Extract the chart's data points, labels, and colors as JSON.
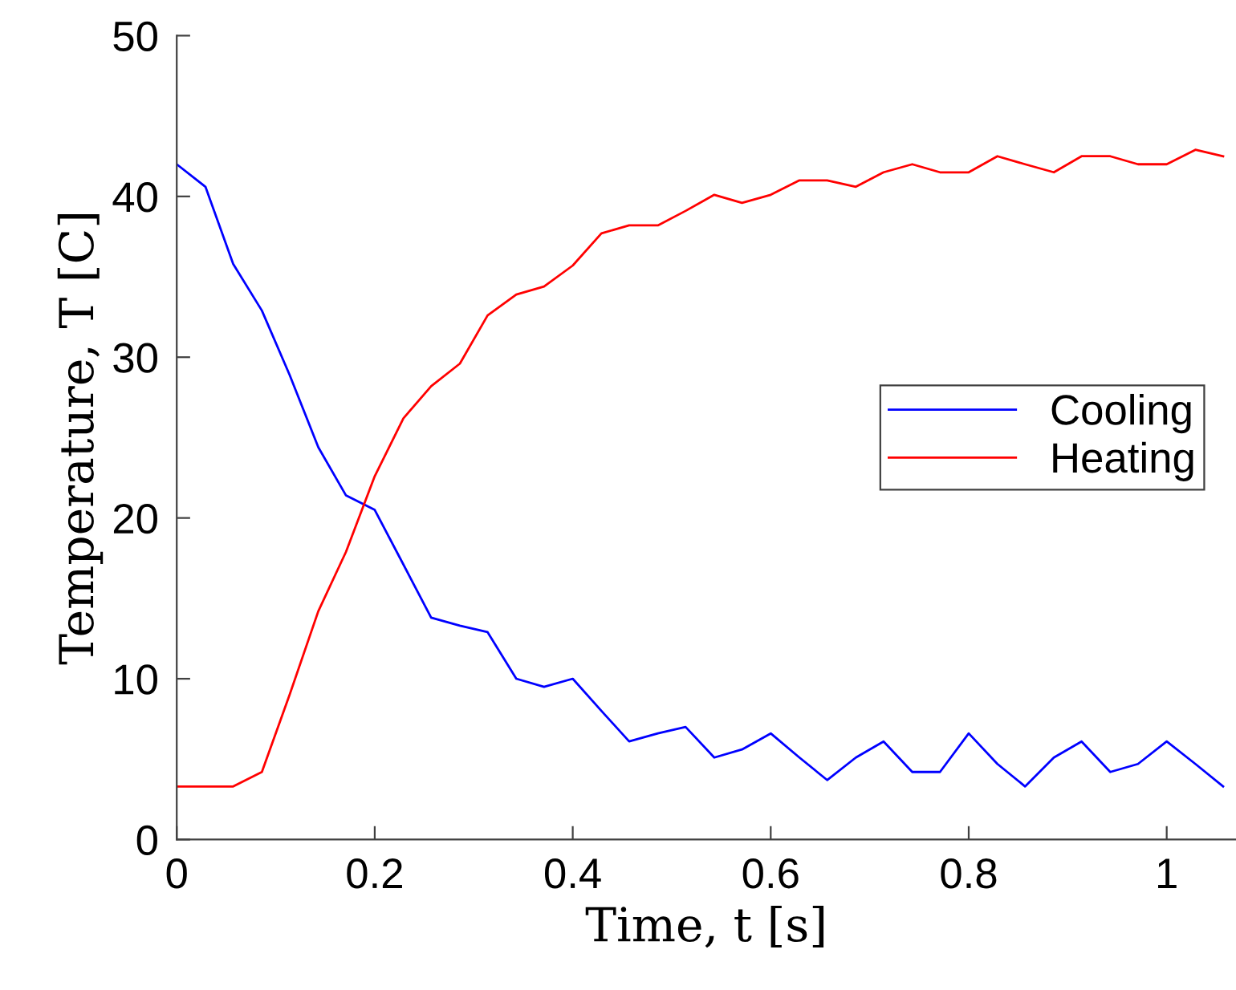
{
  "chart_data": {
    "type": "line",
    "xlabel": "Time, t [s]",
    "ylabel": "Temperature, T [C]",
    "x": [
      0,
      0.029,
      0.057,
      0.086,
      0.114,
      0.143,
      0.171,
      0.2,
      0.229,
      0.257,
      0.286,
      0.314,
      0.343,
      0.371,
      0.4,
      0.429,
      0.457,
      0.486,
      0.514,
      0.543,
      0.571,
      0.6,
      0.629,
      0.657,
      0.686,
      0.714,
      0.743,
      0.771,
      0.8,
      0.829,
      0.857,
      0.886,
      0.914,
      0.943,
      0.971,
      1.0,
      1.029,
      1.057
    ],
    "series": [
      {
        "name": "Cooling",
        "color": "#0000ff",
        "values": [
          42.0,
          40.6,
          35.8,
          32.9,
          28.9,
          24.4,
          21.4,
          20.5,
          17.1,
          13.8,
          13.3,
          12.9,
          10.0,
          9.5,
          10.0,
          8.0,
          6.1,
          6.6,
          7.0,
          5.1,
          5.6,
          6.6,
          5.1,
          3.7,
          5.1,
          6.1,
          4.2,
          4.2,
          6.6,
          4.7,
          3.3,
          5.1,
          6.1,
          4.2,
          4.7,
          6.1,
          4.7,
          3.3
        ]
      },
      {
        "name": "Heating",
        "color": "#ff0000",
        "values": [
          3.3,
          3.3,
          3.3,
          4.2,
          9.0,
          14.2,
          17.9,
          22.6,
          26.2,
          28.2,
          29.6,
          32.6,
          33.9,
          34.4,
          35.7,
          37.7,
          38.2,
          38.2,
          39.1,
          40.1,
          39.6,
          40.1,
          41.0,
          41.0,
          40.6,
          41.5,
          42.0,
          41.5,
          41.5,
          42.5,
          42.0,
          41.5,
          42.5,
          42.5,
          42.0,
          42.0,
          42.9,
          42.5
        ]
      }
    ],
    "xlim": [
      0,
      1.07
    ],
    "ylim": [
      0,
      50
    ],
    "xticks": [
      0,
      0.2,
      0.4,
      0.6,
      0.8,
      1
    ],
    "yticks": [
      0,
      10,
      20,
      30,
      40,
      50
    ],
    "grid": false,
    "legend": "right",
    "marker": "none",
    "line_style": "solid"
  }
}
